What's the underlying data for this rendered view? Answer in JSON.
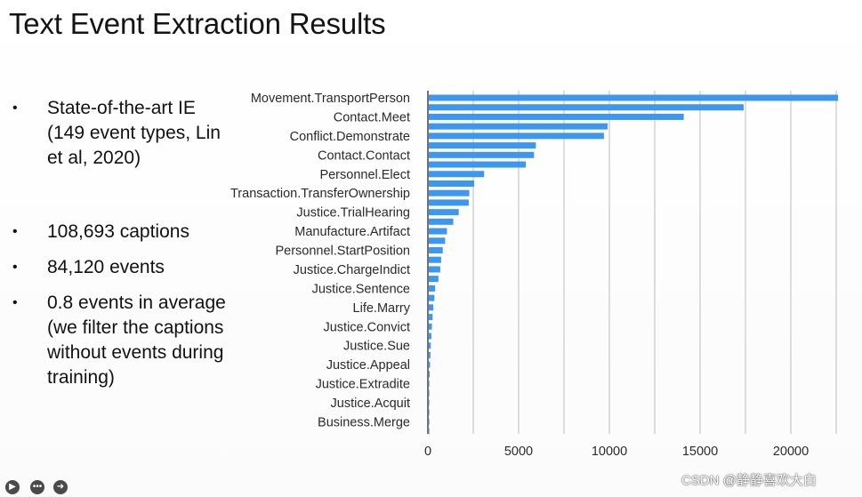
{
  "slide": {
    "title": "Text Event Extraction Results",
    "bullets": [
      "State-of-the-art IE (149 event types, Lin et al, 2020)",
      "108,693 captions",
      "84,120 events",
      "0.8 events in average (we filter the captions without events during training)"
    ],
    "bullet_symbol": "•"
  },
  "chart_data": {
    "type": "bar",
    "orientation": "horizontal",
    "color": "#3d97ec",
    "grid": true,
    "xlim": [
      0,
      22500
    ],
    "xticks": [
      0,
      5000,
      10000,
      15000,
      20000
    ],
    "xtick_labels": [
      "0",
      "5000",
      "10000",
      "15000",
      "20000"
    ],
    "categories_labeled": [
      "Movement.TransportPerson",
      "Contact.Meet",
      "Conflict.Demonstrate",
      "Contact.Contact",
      "Personnel.Elect",
      "Transaction.TransferOwnership",
      "Justice.TrialHearing",
      "Manufacture.Artifact",
      "Personnel.StartPosition",
      "Justice.ChargeIndict",
      "Justice.Sentence",
      "Life.Marry",
      "Justice.Convict",
      "Justice.Sue",
      "Justice.Appeal",
      "Justice.Extradite",
      "Justice.Acquit",
      "Business.Merge"
    ],
    "values": [
      22600,
      17400,
      14100,
      9900,
      9700,
      5950,
      5850,
      5400,
      3100,
      2550,
      2280,
      2250,
      1700,
      1400,
      1050,
      950,
      820,
      730,
      680,
      580,
      400,
      360,
      300,
      260,
      220,
      190,
      160,
      140,
      120,
      100,
      80,
      60,
      40,
      30,
      20,
      10
    ]
  },
  "ui": {
    "controls": [
      "video-icon",
      "more-icon",
      "next-icon"
    ],
    "watermark": "CSDN @静静喜欢大白"
  }
}
